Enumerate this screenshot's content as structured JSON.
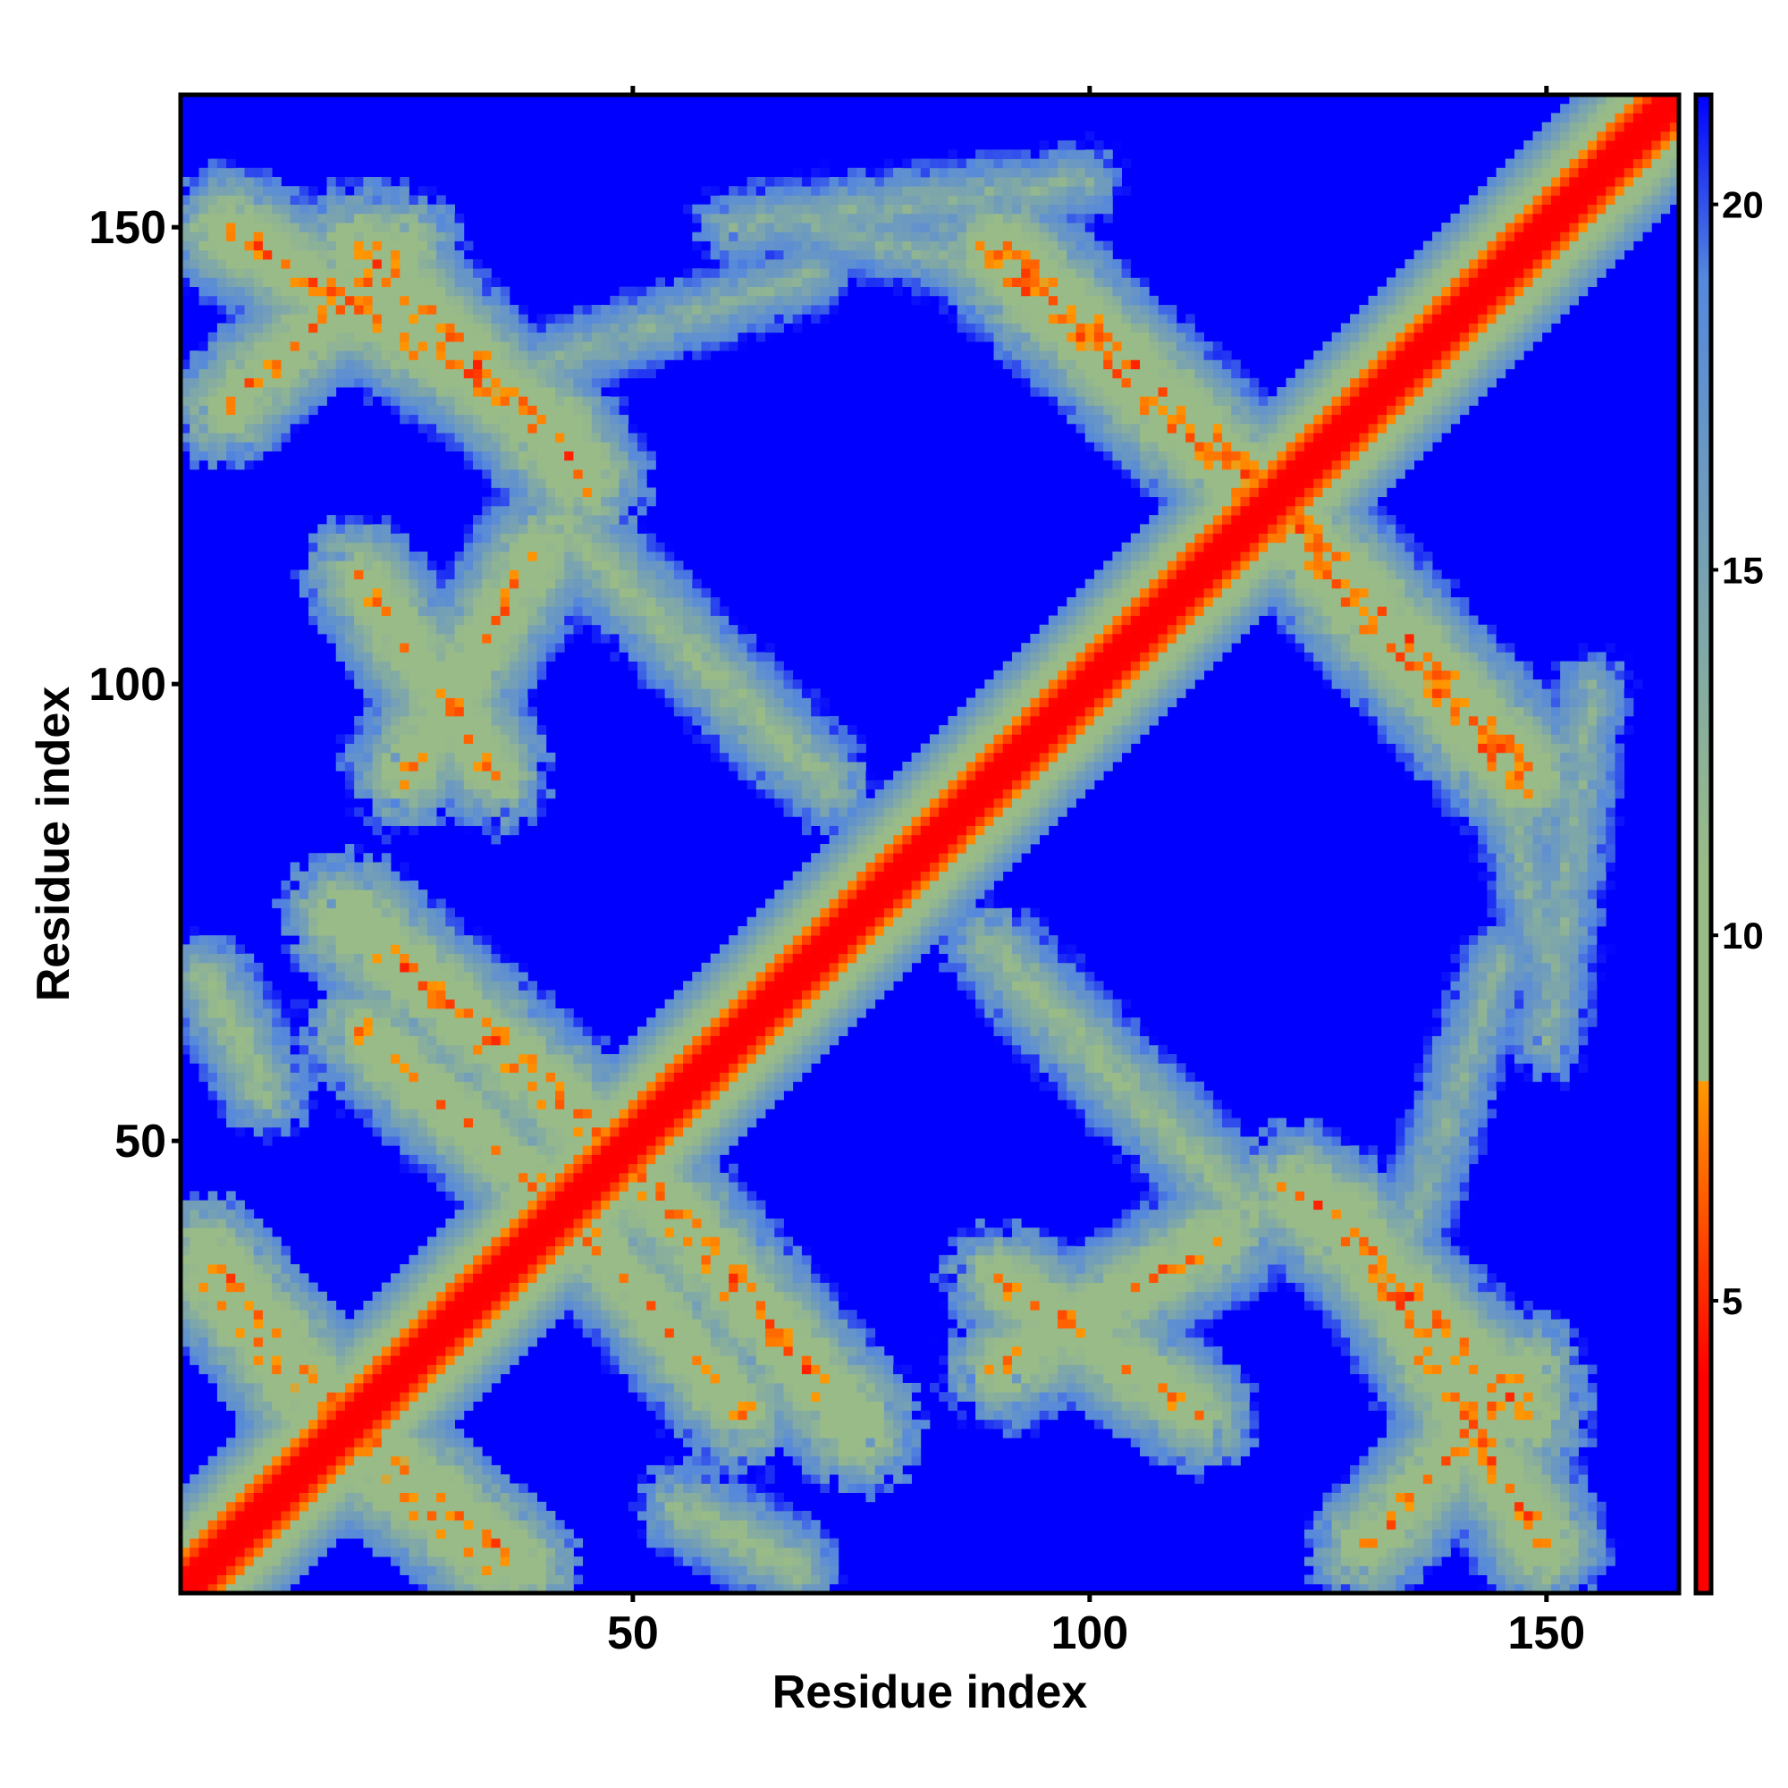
{
  "chart_data": {
    "type": "heatmap",
    "title": "",
    "xlabel": "Residue index",
    "ylabel": "Residue index",
    "xlim": [
      1,
      164
    ],
    "ylim": [
      1,
      164
    ],
    "xticks": [
      50,
      100,
      150
    ],
    "yticks": [
      50,
      100,
      150
    ],
    "xtick_labels": [
      "50",
      "100",
      "150"
    ],
    "ytick_labels": [
      "50",
      "100",
      "150"
    ],
    "colorbar": {
      "range": [
        1,
        21.5
      ],
      "ticks": [
        5,
        10,
        15,
        20
      ],
      "tick_labels": [
        "5",
        "10",
        "15",
        "20"
      ],
      "stops": [
        {
          "value": 1.0,
          "color": "#ff0000"
        },
        {
          "value": 4.0,
          "color": "#ff0000"
        },
        {
          "value": 8.0,
          "color": "#ff9900"
        },
        {
          "value": 8.01,
          "color": "#99bb88"
        },
        {
          "value": 11.0,
          "color": "#99bb88"
        },
        {
          "value": 19.0,
          "color": "#5588dd"
        },
        {
          "value": 21.5,
          "color": "#0000ff"
        }
      ]
    },
    "residues": 164,
    "background_value": 21.5,
    "diagonal": {
      "center_value": 1.0,
      "slope_per_offset": 1.55
    },
    "contact_bands": [
      {
        "from": [
          5,
          150
        ],
        "to": [
          42,
          128
        ],
        "core_value": 6.5,
        "width": 5
      },
      {
        "from": [
          18,
          75
        ],
        "to": [
          47,
          50
        ],
        "core_value": 6.0,
        "width": 5
      },
      {
        "from": [
          20,
          112
        ],
        "to": [
          35,
          90
        ],
        "core_value": 7.0,
        "width": 4
      },
      {
        "from": [
          41,
          118
        ],
        "to": [
          67,
          92
        ],
        "core_value": 11.0,
        "width": 4
      },
      {
        "from": [
          3,
          38
        ],
        "to": [
          18,
          20
        ],
        "core_value": 6.5,
        "width": 4
      },
      {
        "from": [
          20,
          15
        ],
        "to": [
          35,
          3
        ],
        "core_value": 7.0,
        "width": 4
      },
      {
        "from": [
          41,
          44
        ],
        "to": [
          62,
          20
        ],
        "core_value": 7.0,
        "width": 5
      },
      {
        "from": [
          55,
          10
        ],
        "to": [
          68,
          3
        ],
        "core_value": 10.5,
        "width": 3
      },
      {
        "from": [
          88,
          148
        ],
        "to": [
          118,
          120
        ],
        "core_value": 6.5,
        "width": 5
      },
      {
        "from": [
          122,
          118
        ],
        "to": [
          148,
          90
        ],
        "core_value": 6.0,
        "width": 5
      },
      {
        "from": [
          60,
          150
        ],
        "to": [
          100,
          155
        ],
        "core_value": 13.0,
        "width": 4
      },
      {
        "from": [
          145,
          90
        ],
        "to": [
          150,
          70
        ],
        "core_value": 13.0,
        "width": 3
      },
      {
        "from": [
          88,
          72
        ],
        "to": [
          118,
          42
        ],
        "core_value": 11.0,
        "width": 5
      },
      {
        "from": [
          122,
          45
        ],
        "to": [
          148,
          20
        ],
        "core_value": 6.0,
        "width": 5
      },
      {
        "from": [
          90,
          25
        ],
        "to": [
          115,
          40
        ],
        "core_value": 7.0,
        "width": 5
      },
      {
        "from": [
          130,
          5
        ],
        "to": [
          148,
          25
        ],
        "core_value": 7.0,
        "width": 4
      },
      {
        "from": [
          145,
          70
        ],
        "to": [
          135,
          40
        ],
        "core_value": 13.0,
        "width": 3
      }
    ]
  }
}
